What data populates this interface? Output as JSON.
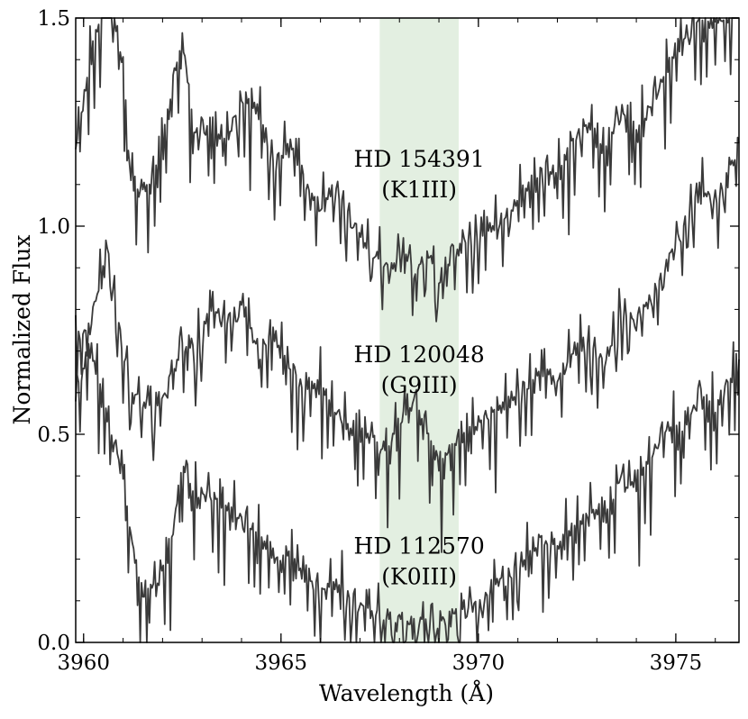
{
  "chart_data": {
    "type": "line",
    "title": "",
    "xlabel": "Wavelength (Å)",
    "ylabel": "Normalized Flux",
    "xlim": [
      3959.8,
      3976.6
    ],
    "ylim": [
      0.0,
      1.5
    ],
    "xticks": [
      {
        "value": 3960,
        "label": "3960"
      },
      {
        "value": 3965,
        "label": "3965"
      },
      {
        "value": 3970,
        "label": "3970"
      },
      {
        "value": 3975,
        "label": "3975"
      }
    ],
    "yticks": [
      {
        "value": 0.0,
        "label": "0.0"
      },
      {
        "value": 0.5,
        "label": "0.5"
      },
      {
        "value": 1.0,
        "label": "1.0"
      },
      {
        "value": 1.5,
        "label": "1.5"
      }
    ],
    "minor_xtick_step": 1,
    "minor_ytick_step": 0.1,
    "grid": false,
    "highlight_band": {
      "x_start": 3967.5,
      "x_end": 3969.5,
      "color": "#e3efe1"
    },
    "line_color": "#3a3a3a",
    "series": [
      {
        "star": "HD 154391",
        "spectral_type": "(K1III)",
        "label_x": 3968.5,
        "label_y": 1.13,
        "x": [
          3959.8,
          3960.2,
          3960.6,
          3961.0,
          3961.2,
          3961.5,
          3961.8,
          3962.2,
          3962.5,
          3962.8,
          3963.2,
          3963.6,
          3964.0,
          3964.4,
          3964.8,
          3965.2,
          3965.6,
          3966.0,
          3966.4,
          3966.8,
          3967.2,
          3967.5,
          3967.8,
          3968.1,
          3968.4,
          3968.7,
          3969.0,
          3969.3,
          3969.6,
          3970.0,
          3970.4,
          3970.8,
          3971.2,
          3971.6,
          3972.0,
          3972.4,
          3972.8,
          3973.2,
          3973.6,
          3974.0,
          3974.4,
          3974.8,
          3975.2,
          3975.6,
          3976.0,
          3976.6
        ],
        "y": [
          1.18,
          1.42,
          1.55,
          1.38,
          1.1,
          1.08,
          1.12,
          1.3,
          1.45,
          1.22,
          1.24,
          1.2,
          1.3,
          1.28,
          1.15,
          1.2,
          1.12,
          1.05,
          1.1,
          1.0,
          0.95,
          0.92,
          0.9,
          0.96,
          0.88,
          0.94,
          0.86,
          0.92,
          0.96,
          0.98,
          1.0,
          1.04,
          1.08,
          1.14,
          1.12,
          1.2,
          1.24,
          1.18,
          1.28,
          1.22,
          1.3,
          1.38,
          1.45,
          1.5,
          1.48,
          1.55
        ]
      },
      {
        "star": "HD 120048",
        "spectral_type": "(G9III)",
        "label_x": 3968.5,
        "label_y": 0.66,
        "x": [
          3959.8,
          3960.2,
          3960.6,
          3961.0,
          3961.2,
          3961.5,
          3961.8,
          3962.2,
          3962.5,
          3962.8,
          3963.2,
          3963.6,
          3964.0,
          3964.4,
          3964.8,
          3965.2,
          3965.6,
          3966.0,
          3966.4,
          3966.8,
          3967.2,
          3967.5,
          3967.8,
          3968.1,
          3968.4,
          3968.7,
          3969.0,
          3969.3,
          3969.6,
          3970.0,
          3970.4,
          3970.8,
          3971.2,
          3971.6,
          3972.0,
          3972.4,
          3972.8,
          3973.2,
          3973.6,
          3974.0,
          3974.4,
          3974.8,
          3975.2,
          3975.6,
          3976.0,
          3976.6
        ],
        "y": [
          0.72,
          0.78,
          0.95,
          0.7,
          0.6,
          0.58,
          0.55,
          0.62,
          0.72,
          0.68,
          0.8,
          0.78,
          0.82,
          0.7,
          0.74,
          0.66,
          0.6,
          0.62,
          0.56,
          0.5,
          0.52,
          0.46,
          0.48,
          0.54,
          0.58,
          0.5,
          0.42,
          0.46,
          0.5,
          0.52,
          0.55,
          0.58,
          0.62,
          0.65,
          0.64,
          0.7,
          0.72,
          0.66,
          0.8,
          0.76,
          0.84,
          0.92,
          1.0,
          1.1,
          1.05,
          1.2
        ]
      },
      {
        "star": "HD 112570",
        "spectral_type": "(K0III)",
        "label_x": 3968.5,
        "label_y": 0.2,
        "x": [
          3959.8,
          3960.2,
          3960.6,
          3961.0,
          3961.2,
          3961.5,
          3961.8,
          3962.2,
          3962.5,
          3962.8,
          3963.2,
          3963.6,
          3964.0,
          3964.4,
          3964.8,
          3965.2,
          3965.6,
          3966.0,
          3966.4,
          3966.8,
          3967.2,
          3967.5,
          3967.8,
          3968.1,
          3968.4,
          3968.7,
          3969.0,
          3969.3,
          3969.6,
          3970.0,
          3970.4,
          3970.8,
          3971.2,
          3971.6,
          3972.0,
          3972.4,
          3972.8,
          3973.2,
          3973.6,
          3974.0,
          3974.4,
          3974.8,
          3975.2,
          3975.6,
          3976.0,
          3976.6
        ],
        "y": [
          0.6,
          0.7,
          0.55,
          0.4,
          0.25,
          0.1,
          0.14,
          0.22,
          0.42,
          0.35,
          0.36,
          0.32,
          0.3,
          0.26,
          0.2,
          0.22,
          0.16,
          0.12,
          0.14,
          0.1,
          0.08,
          0.06,
          0.04,
          0.06,
          0.02,
          0.05,
          0.03,
          0.06,
          0.08,
          0.1,
          0.14,
          0.16,
          0.2,
          0.24,
          0.22,
          0.28,
          0.32,
          0.3,
          0.4,
          0.38,
          0.45,
          0.52,
          0.5,
          0.6,
          0.55,
          0.68
        ]
      }
    ]
  }
}
